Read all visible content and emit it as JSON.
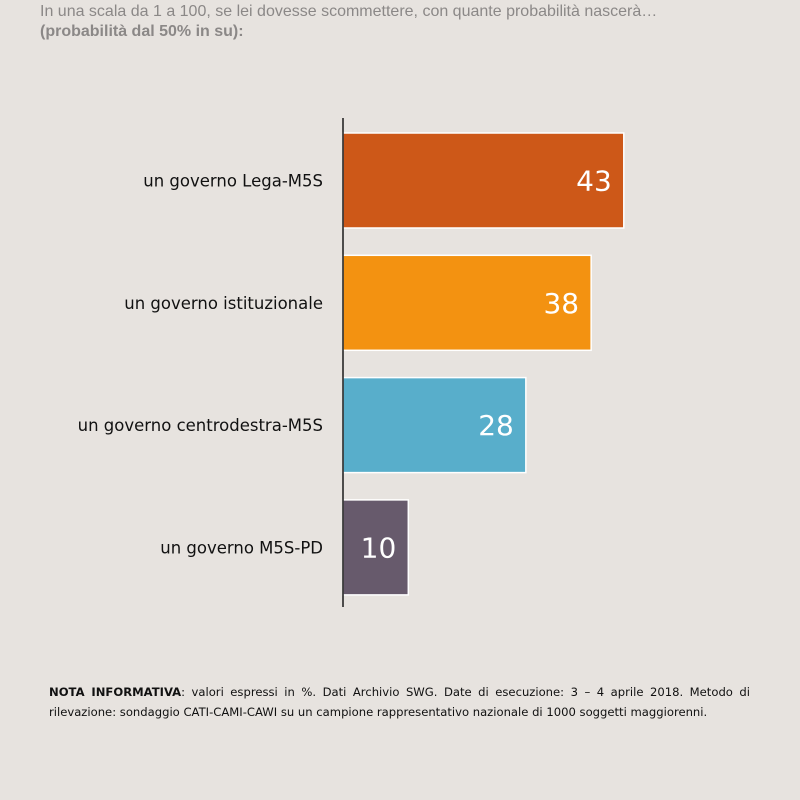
{
  "question": {
    "line1": "In una scala da 1 a 100, se lei dovesse scommettere, con quante probabilità nascerà…",
    "line2": "(probabilità dal 50% in su):"
  },
  "chart_data": {
    "type": "bar",
    "orientation": "horizontal",
    "categories": [
      "un governo Lega-M5S",
      "un governo istituzionale",
      "un governo centrodestra-M5S",
      "un governo M5S-PD"
    ],
    "values": [
      43,
      38,
      28,
      10
    ],
    "colors": [
      "#cd5818",
      "#f39211",
      "#58aecb",
      "#675a6c"
    ],
    "title": "",
    "xlabel": "",
    "ylabel": "",
    "xlim": [
      0,
      50
    ],
    "grid": false,
    "legend": "none"
  },
  "note": {
    "label": "NOTA INFORMATIVA",
    "text": ": valori espressi in %. Dati Archivio SWG. Date di esecuzione: 3 – 4 aprile 2018. Metodo di rilevazione: sondaggio CATI-CAMI-CAWI su un campione rappresentativo nazionale di 1000 soggetti maggiorenni."
  }
}
